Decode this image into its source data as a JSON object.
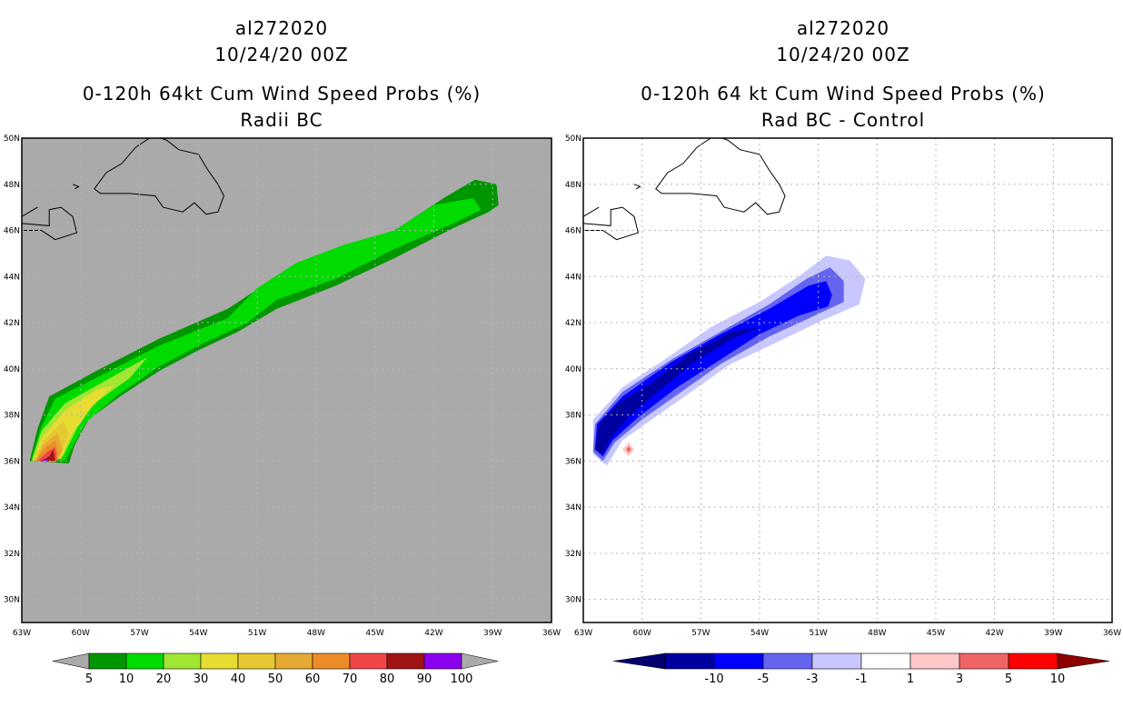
{
  "chart_data": [
    {
      "type": "heatmap",
      "panel": "left",
      "title_lines": [
        "al272020",
        "10/24/20 00Z"
      ],
      "subtitle_lines": [
        "0-120h 64kt Cum Wind Speed Probs (%)",
        "Radii BC"
      ],
      "lon_range": [
        -63,
        -36
      ],
      "lat_range": [
        29,
        50
      ],
      "x_tick_labels": [
        "63W",
        "60W",
        "57W",
        "54W",
        "51W",
        "48W",
        "45W",
        "42W",
        "39W",
        "36W"
      ],
      "y_tick_labels": [
        "30N",
        "32N",
        "34N",
        "36N",
        "38N",
        "40N",
        "42N",
        "44N",
        "46N",
        "48N",
        "50N"
      ],
      "background_color": "#aaaaaa",
      "grid": true,
      "colorbar": {
        "labels": [
          "5",
          "10",
          "20",
          "30",
          "40",
          "50",
          "60",
          "70",
          "80",
          "90",
          "100"
        ],
        "colors": [
          "#009600",
          "#00dc00",
          "#a0e632",
          "#e6dc32",
          "#e6c832",
          "#e6aa32",
          "#ec8c28",
          "#f04646",
          "#a01414",
          "#8c00f0"
        ],
        "end_color": "#aaaaaa"
      },
      "swath": {
        "description": "probability swath along track from 36N 63W to 47N 39W",
        "peak_percent": 90
      }
    },
    {
      "type": "heatmap",
      "panel": "right",
      "title_lines": [
        "al272020",
        "10/24/20 00Z"
      ],
      "subtitle_lines": [
        "0-120h 64 kt Cum Wind Speed Probs (%)",
        "Rad BC - Control"
      ],
      "lon_range": [
        -63,
        -36
      ],
      "lat_range": [
        29,
        50
      ],
      "x_tick_labels": [
        "63W",
        "60W",
        "57W",
        "54W",
        "51W",
        "48W",
        "45W",
        "42W",
        "39W",
        "36W"
      ],
      "y_tick_labels": [
        "30N",
        "32N",
        "34N",
        "36N",
        "38N",
        "40N",
        "42N",
        "44N",
        "46N",
        "48N",
        "50N"
      ],
      "background_color": "#ffffff",
      "grid": true,
      "colorbar": {
        "labels": [
          "-10",
          "-5",
          "-3",
          "-1",
          "1",
          "3",
          "5",
          "10"
        ],
        "colors": [
          "#0000a0",
          "#0000ff",
          "#6464f0",
          "#c8c8ff",
          "#ffffff",
          "#ffc8c8",
          "#f06464",
          "#ff0000",
          "#a00000"
        ],
        "low_end_color": "#00006e",
        "high_end_color": "#8c0000"
      },
      "swath": {
        "description": "negative difference swath from 36N 62W to 44N 50W",
        "min_diff": -10
      }
    }
  ]
}
